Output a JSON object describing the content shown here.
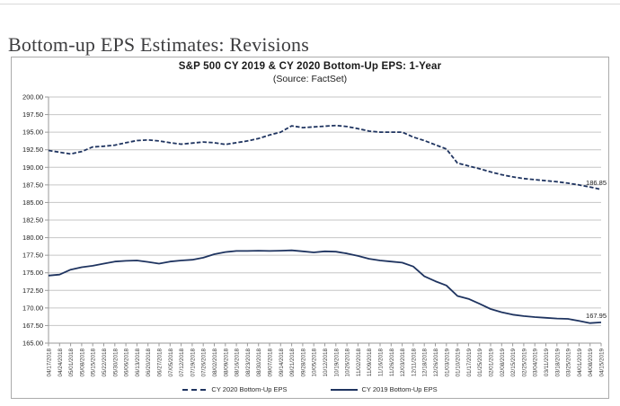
{
  "page": {
    "heading": "Bottom-up EPS Estimates: Revisions"
  },
  "chart_data": {
    "type": "line",
    "title": "S&P 500 CY 2019 & CY 2020 Bottom-Up EPS: 1-Year",
    "subtitle": "(Source: FactSet)",
    "ylim": [
      165,
      200
    ],
    "ytick_step": 2.5,
    "grid": true,
    "legend_position": "bottom",
    "colors": {
      "line": "#1f3460",
      "grid": "#c6c6c6",
      "axis": "#9a9a9a",
      "tick_label": "#3a3a3a"
    },
    "y_ticks": [
      "200.00",
      "197.50",
      "195.00",
      "192.50",
      "190.00",
      "187.50",
      "185.00",
      "182.50",
      "180.00",
      "177.50",
      "175.00",
      "172.50",
      "170.00",
      "167.50",
      "165.00"
    ],
    "categories": [
      "04/17/2018",
      "04/24/2018",
      "05/01/2018",
      "05/08/2018",
      "05/15/2018",
      "05/22/2018",
      "05/30/2018",
      "06/06/2018",
      "06/13/2018",
      "06/20/2018",
      "06/27/2018",
      "07/05/2018",
      "07/12/2018",
      "07/19/2018",
      "07/26/2018",
      "08/02/2018",
      "08/09/2018",
      "08/16/2018",
      "08/23/2018",
      "08/30/2018",
      "09/07/2018",
      "09/14/2018",
      "09/21/2018",
      "09/28/2018",
      "10/05/2018",
      "10/12/2018",
      "10/19/2018",
      "10/26/2018",
      "11/02/2018",
      "11/09/2018",
      "11/16/2018",
      "11/26/2018",
      "12/03/2018",
      "12/11/2018",
      "12/18/2018",
      "12/26/2018",
      "01/03/2019",
      "01/10/2019",
      "01/17/2019",
      "01/25/2019",
      "02/01/2019",
      "02/08/2019",
      "02/15/2019",
      "02/25/2019",
      "03/04/2019",
      "03/11/2019",
      "03/18/2019",
      "03/25/2019",
      "04/01/2019",
      "04/08/2019",
      "04/15/2019"
    ],
    "series": [
      {
        "name": "CY 2020 Bottom-Up EPS",
        "style": "dashed",
        "end_label": "186.85",
        "values": [
          192.4,
          192.15,
          191.9,
          192.25,
          192.9,
          193.0,
          193.15,
          193.5,
          193.8,
          193.9,
          193.75,
          193.5,
          193.3,
          193.45,
          193.6,
          193.5,
          193.25,
          193.5,
          193.75,
          194.1,
          194.6,
          195.0,
          195.9,
          195.65,
          195.75,
          195.85,
          195.95,
          195.8,
          195.5,
          195.15,
          195.0,
          195.0,
          195.0,
          194.3,
          193.8,
          193.2,
          192.6,
          190.6,
          190.2,
          189.8,
          189.35,
          188.95,
          188.65,
          188.4,
          188.25,
          188.1,
          187.95,
          187.75,
          187.5,
          187.2,
          186.85
        ]
      },
      {
        "name": "CY 2019 Bottom-Up EPS",
        "style": "solid",
        "end_label": "167.95",
        "values": [
          174.6,
          174.75,
          175.45,
          175.8,
          176.0,
          176.3,
          176.6,
          176.7,
          176.75,
          176.55,
          176.3,
          176.6,
          176.75,
          176.85,
          177.15,
          177.65,
          177.95,
          178.1,
          178.1,
          178.15,
          178.1,
          178.15,
          178.2,
          178.05,
          177.9,
          178.05,
          178.0,
          177.75,
          177.4,
          177.0,
          176.75,
          176.6,
          176.45,
          175.9,
          174.5,
          173.8,
          173.2,
          171.7,
          171.3,
          170.6,
          169.85,
          169.4,
          169.05,
          168.85,
          168.7,
          168.6,
          168.5,
          168.45,
          168.15,
          167.85,
          167.95
        ]
      }
    ],
    "legend": [
      {
        "label": "CY 2020 Bottom-Up EPS",
        "style": "dashed"
      },
      {
        "label": "CY 2019 Bottom-Up EPS",
        "style": "solid"
      }
    ]
  }
}
